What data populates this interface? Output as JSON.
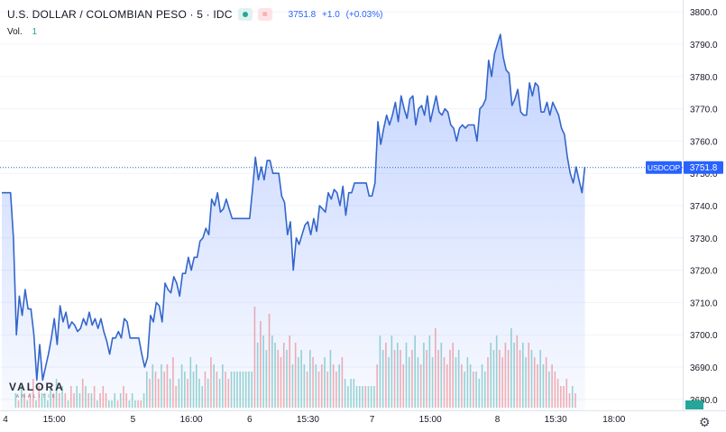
{
  "header": {
    "symbol_title": "U.S. DOLLAR / COLOMBIAN PESO · 5 · IDC",
    "eq_icon": "=",
    "last": "3751.8",
    "change": "+1.0",
    "change_pct": "(+0.03%)",
    "vol_label": "Vol.",
    "vol_value": "1"
  },
  "price_label": {
    "ticker": "USDCOP",
    "value": "3751.8"
  },
  "watermark": {
    "brand": "VALORA",
    "tag": "ANALITIK"
  },
  "colors": {
    "line": "#2962ff",
    "up": "#26a69a",
    "down": "#ef5350",
    "axis_text": "#131722"
  },
  "icons": {
    "settings": "gear-icon"
  },
  "chart_data": {
    "type": "area",
    "y_axis": {
      "ticks": [
        3680,
        3690,
        3700,
        3710,
        3720,
        3730,
        3740,
        3750,
        3760,
        3770,
        3780,
        3790,
        3800
      ],
      "range": [
        3678,
        3802
      ],
      "position": "right"
    },
    "x_axis": {
      "ticks": [
        {
          "label": "4",
          "x": 0
        },
        {
          "label": "15:00",
          "x": 18
        },
        {
          "label": "5",
          "x": 45
        },
        {
          "label": "16:00",
          "x": 65
        },
        {
          "label": "6",
          "x": 85
        },
        {
          "label": "15:30",
          "x": 105
        },
        {
          "label": "7",
          "x": 127
        },
        {
          "label": "15:00",
          "x": 147
        },
        {
          "label": "8",
          "x": 170
        },
        {
          "label": "15:30",
          "x": 190
        },
        {
          "label": "18:00",
          "x": 210
        }
      ],
      "range": [
        0,
        228
      ]
    },
    "last_price_line": 3751.8,
    "grid": "horizontal-light",
    "series": [
      {
        "type": "line",
        "points": [
          [
            0,
            3744
          ],
          [
            3,
            3744
          ],
          [
            4,
            3730
          ],
          [
            5,
            3700
          ],
          [
            6,
            3712
          ],
          [
            7,
            3706
          ],
          [
            8,
            3714
          ],
          [
            9,
            3708
          ],
          [
            10,
            3708
          ],
          [
            11,
            3700
          ],
          [
            12,
            3686
          ],
          [
            13,
            3697
          ],
          [
            14,
            3686
          ],
          [
            15,
            3690
          ],
          [
            16,
            3694
          ],
          [
            17,
            3699
          ],
          [
            18,
            3705
          ],
          [
            19,
            3697
          ],
          [
            20,
            3709
          ],
          [
            21,
            3704
          ],
          [
            22,
            3707
          ],
          [
            23,
            3702
          ],
          [
            24,
            3704
          ],
          [
            25,
            3703
          ],
          [
            26,
            3701
          ],
          [
            27,
            3702
          ],
          [
            28,
            3705
          ],
          [
            29,
            3703
          ],
          [
            30,
            3707
          ],
          [
            31,
            3703
          ],
          [
            32,
            3705
          ],
          [
            33,
            3702
          ],
          [
            34,
            3705
          ],
          [
            35,
            3701
          ],
          [
            36,
            3698
          ],
          [
            37,
            3694
          ],
          [
            38,
            3699
          ],
          [
            39,
            3699
          ],
          [
            40,
            3701
          ],
          [
            41,
            3699
          ],
          [
            42,
            3705
          ],
          [
            43,
            3704
          ],
          [
            44,
            3699
          ],
          [
            45,
            3699
          ],
          [
            46,
            3699
          ],
          [
            47,
            3699
          ],
          [
            48,
            3694
          ],
          [
            49,
            3690
          ],
          [
            50,
            3693
          ],
          [
            51,
            3706
          ],
          [
            52,
            3704
          ],
          [
            53,
            3710
          ],
          [
            54,
            3709
          ],
          [
            55,
            3704
          ],
          [
            56,
            3716
          ],
          [
            57,
            3714
          ],
          [
            58,
            3713
          ],
          [
            59,
            3718
          ],
          [
            60,
            3716
          ],
          [
            61,
            3712
          ],
          [
            62,
            3719
          ],
          [
            63,
            3719
          ],
          [
            64,
            3724
          ],
          [
            65,
            3720
          ],
          [
            66,
            3724
          ],
          [
            67,
            3724
          ],
          [
            68,
            3729
          ],
          [
            69,
            3730
          ],
          [
            70,
            3733
          ],
          [
            71,
            3731
          ],
          [
            72,
            3742
          ],
          [
            73,
            3740
          ],
          [
            74,
            3744
          ],
          [
            75,
            3738
          ],
          [
            76,
            3739
          ],
          [
            77,
            3742
          ],
          [
            78,
            3739
          ],
          [
            79,
            3736
          ],
          [
            80,
            3736
          ],
          [
            81,
            3736
          ],
          [
            82,
            3736
          ],
          [
            83,
            3736
          ],
          [
            84,
            3736
          ],
          [
            85,
            3736
          ],
          [
            86,
            3745
          ],
          [
            87,
            3755
          ],
          [
            88,
            3748
          ],
          [
            89,
            3752
          ],
          [
            90,
            3748
          ],
          [
            91,
            3754
          ],
          [
            92,
            3754
          ],
          [
            93,
            3750
          ],
          [
            94,
            3750
          ],
          [
            95,
            3750
          ],
          [
            96,
            3743
          ],
          [
            97,
            3741
          ],
          [
            98,
            3731
          ],
          [
            99,
            3735
          ],
          [
            100,
            3720
          ],
          [
            101,
            3730
          ],
          [
            102,
            3728
          ],
          [
            103,
            3731
          ],
          [
            104,
            3734
          ],
          [
            105,
            3735
          ],
          [
            106,
            3731
          ],
          [
            107,
            3736
          ],
          [
            108,
            3732
          ],
          [
            109,
            3740
          ],
          [
            110,
            3739
          ],
          [
            111,
            3738
          ],
          [
            112,
            3744
          ],
          [
            113,
            3742
          ],
          [
            114,
            3745
          ],
          [
            115,
            3744
          ],
          [
            116,
            3740
          ],
          [
            117,
            3746
          ],
          [
            118,
            3737
          ],
          [
            119,
            3744
          ],
          [
            120,
            3744
          ],
          [
            121,
            3747
          ],
          [
            122,
            3747
          ],
          [
            123,
            3747
          ],
          [
            124,
            3747
          ],
          [
            125,
            3747
          ],
          [
            126,
            3743
          ],
          [
            127,
            3743
          ],
          [
            128,
            3747
          ],
          [
            129,
            3766
          ],
          [
            130,
            3759
          ],
          [
            131,
            3764
          ],
          [
            132,
            3768
          ],
          [
            133,
            3765
          ],
          [
            134,
            3768
          ],
          [
            135,
            3772
          ],
          [
            136,
            3766
          ],
          [
            137,
            3774
          ],
          [
            138,
            3770
          ],
          [
            139,
            3767
          ],
          [
            140,
            3773
          ],
          [
            141,
            3774
          ],
          [
            142,
            3765
          ],
          [
            143,
            3770
          ],
          [
            144,
            3771
          ],
          [
            145,
            3768
          ],
          [
            146,
            3774
          ],
          [
            147,
            3766
          ],
          [
            148,
            3770
          ],
          [
            149,
            3774
          ],
          [
            150,
            3769
          ],
          [
            151,
            3768
          ],
          [
            152,
            3770
          ],
          [
            153,
            3769
          ],
          [
            154,
            3765
          ],
          [
            155,
            3764
          ],
          [
            156,
            3760
          ],
          [
            157,
            3764
          ],
          [
            158,
            3765
          ],
          [
            159,
            3764
          ],
          [
            160,
            3765
          ],
          [
            161,
            3765
          ],
          [
            162,
            3765
          ],
          [
            163,
            3760
          ],
          [
            164,
            3770
          ],
          [
            165,
            3771
          ],
          [
            166,
            3773
          ],
          [
            167,
            3785
          ],
          [
            168,
            3780
          ],
          [
            169,
            3787
          ],
          [
            170,
            3790
          ],
          [
            171,
            3793
          ],
          [
            172,
            3786
          ],
          [
            173,
            3782
          ],
          [
            174,
            3781
          ],
          [
            175,
            3771
          ],
          [
            176,
            3773
          ],
          [
            177,
            3776
          ],
          [
            178,
            3769
          ],
          [
            179,
            3768
          ],
          [
            180,
            3768
          ],
          [
            181,
            3778
          ],
          [
            182,
            3774
          ],
          [
            183,
            3778
          ],
          [
            184,
            3777
          ],
          [
            185,
            3769
          ],
          [
            186,
            3769
          ],
          [
            187,
            3772
          ],
          [
            188,
            3768
          ],
          [
            189,
            3772
          ],
          [
            190,
            3770
          ],
          [
            191,
            3768
          ],
          [
            192,
            3764
          ],
          [
            193,
            3762
          ],
          [
            194,
            3755
          ],
          [
            195,
            3750
          ],
          [
            196,
            3747
          ],
          [
            197,
            3752
          ],
          [
            198,
            3748
          ],
          [
            199,
            3744
          ],
          [
            200,
            3752
          ]
        ]
      },
      {
        "type": "volume",
        "values": [
          0,
          0,
          0,
          0,
          2,
          1,
          3,
          2,
          1,
          2,
          4,
          1,
          3,
          2,
          2,
          1,
          3,
          2,
          4,
          2,
          3,
          2,
          1,
          3,
          2,
          3,
          2,
          4,
          3,
          2,
          2,
          3,
          1,
          2,
          3,
          2,
          1,
          1,
          2,
          1,
          2,
          3,
          2,
          1,
          2,
          1,
          1,
          1,
          2,
          5,
          4,
          6,
          5,
          4,
          6,
          5,
          6,
          4,
          7,
          3,
          4,
          6,
          5,
          4,
          7,
          5,
          6,
          4,
          3,
          5,
          4,
          7,
          6,
          5,
          4,
          6,
          5,
          4,
          5,
          5,
          5,
          5,
          5,
          5,
          5,
          5,
          14,
          9,
          12,
          10,
          8,
          13,
          10,
          9,
          8,
          7,
          9,
          8,
          10,
          6,
          9,
          7,
          8,
          6,
          5,
          8,
          7,
          6,
          5,
          6,
          7,
          5,
          8,
          6,
          5,
          6,
          7,
          4,
          3,
          4,
          4,
          3,
          3,
          3,
          3,
          3,
          3,
          3,
          6,
          10,
          8,
          9,
          7,
          10,
          8,
          9,
          8,
          6,
          9,
          7,
          8,
          10,
          7,
          6,
          9,
          8,
          10,
          7,
          11,
          8,
          9,
          7,
          6,
          8,
          9,
          7,
          8,
          6,
          5,
          7,
          6,
          5,
          5,
          4,
          6,
          5,
          7,
          9,
          8,
          10,
          8,
          7,
          9,
          8,
          11,
          9,
          10,
          8,
          9,
          7,
          9,
          8,
          7,
          6,
          8,
          6,
          7,
          5,
          6,
          5,
          4,
          3,
          3,
          4,
          2,
          3,
          2
        ],
        "max": 14
      }
    ]
  }
}
